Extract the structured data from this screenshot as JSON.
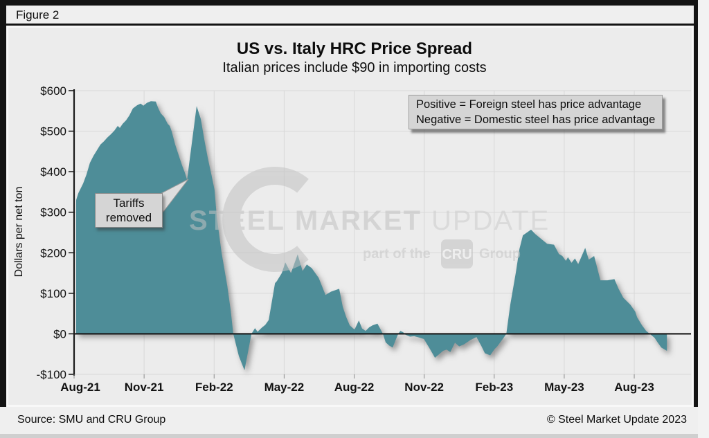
{
  "figure_label": "Figure 2",
  "title": "US vs. Italy HRC Price Spread",
  "subtitle": "Italian prices include $90 in importing costs",
  "legend_note": {
    "line1": "Positive = Foreign steel has price advantage",
    "line2": "Negative = Domestic steel has price advantage"
  },
  "annotation": {
    "line1": "Tariffs",
    "line2": "removed"
  },
  "watermark": {
    "word1": "STEEL",
    "word2": "MARKET",
    "word3": "UPDATE",
    "tagline_pre": "part of the",
    "badge": "CRU",
    "tagline_post": "Group"
  },
  "footer": {
    "source": "Source: SMU and CRU Group",
    "copyright": "© Steel Market Update 2023"
  },
  "colors": {
    "area": "#4e8d98",
    "grid": "#d8d8d8",
    "axis": "#1a1a1a",
    "panel": "#ececec",
    "chrome": "#efefef",
    "box_bg": "#d5d5d5",
    "watermark": "#c2c2c2"
  },
  "chart_data": {
    "type": "area",
    "title": "US vs. Italy HRC Price Spread",
    "subtitle": "Italian prices include $90 in importing costs",
    "xlabel": "",
    "ylabel": "Dollars per net ton",
    "ylim": [
      -100,
      600
    ],
    "grid": true,
    "x_unit": "months since Aug-2021 (fractional = weekly readings)",
    "y_ticks": [
      {
        "v": 600,
        "label": "$600"
      },
      {
        "v": 500,
        "label": "$500"
      },
      {
        "v": 400,
        "label": "$400"
      },
      {
        "v": 300,
        "label": "$300"
      },
      {
        "v": 200,
        "label": "$200"
      },
      {
        "v": 100,
        "label": "$100"
      },
      {
        "v": 0,
        "label": "$0"
      },
      {
        "v": -100,
        "label": "-$100"
      }
    ],
    "x_ticks": [
      {
        "m": 0,
        "label": "Aug-21"
      },
      {
        "m": 3,
        "label": "Nov-21"
      },
      {
        "m": 6,
        "label": "Feb-22"
      },
      {
        "m": 9,
        "label": "May-22"
      },
      {
        "m": 12,
        "label": "Aug-22"
      },
      {
        "m": 15,
        "label": "Nov-22"
      },
      {
        "m": 18,
        "label": "Feb-23"
      },
      {
        "m": 21,
        "label": "May-23"
      },
      {
        "m": 24,
        "label": "Aug-23"
      }
    ],
    "series": [
      {
        "name": "US minus Italy HRC price spread ($/net ton)",
        "points": [
          [
            0.09,
            330
          ],
          [
            0.18,
            347
          ],
          [
            0.39,
            371
          ],
          [
            0.53,
            393
          ],
          [
            0.68,
            422
          ],
          [
            0.83,
            439
          ],
          [
            0.98,
            453
          ],
          [
            1.13,
            467
          ],
          [
            1.28,
            475
          ],
          [
            1.42,
            484
          ],
          [
            1.57,
            492
          ],
          [
            1.72,
            501
          ],
          [
            1.87,
            513
          ],
          [
            1.96,
            508
          ],
          [
            2.08,
            518
          ],
          [
            2.23,
            527
          ],
          [
            2.37,
            539
          ],
          [
            2.52,
            556
          ],
          [
            2.7,
            564
          ],
          [
            2.85,
            568
          ],
          [
            2.97,
            563
          ],
          [
            3.12,
            570
          ],
          [
            3.29,
            574
          ],
          [
            3.5,
            573
          ],
          [
            3.59,
            559
          ],
          [
            3.71,
            544
          ],
          [
            3.86,
            535
          ],
          [
            4.01,
            518
          ],
          [
            4.1,
            513
          ],
          [
            4.18,
            500
          ],
          [
            4.33,
            467
          ],
          [
            4.48,
            441
          ],
          [
            4.63,
            415
          ],
          [
            4.75,
            397
          ],
          [
            4.84,
            380
          ],
          [
            5.25,
            562
          ],
          [
            5.43,
            530
          ],
          [
            5.58,
            479
          ],
          [
            5.73,
            433
          ],
          [
            5.88,
            394
          ],
          [
            6.02,
            355
          ],
          [
            6.11,
            290
          ],
          [
            6.32,
            200
          ],
          [
            6.56,
            120
          ],
          [
            6.71,
            58
          ],
          [
            6.82,
            0
          ],
          [
            7.06,
            -55
          ],
          [
            7.3,
            -90
          ],
          [
            7.6,
            0
          ],
          [
            7.75,
            14
          ],
          [
            7.86,
            5
          ],
          [
            8.04,
            15
          ],
          [
            8.19,
            22
          ],
          [
            8.34,
            34
          ],
          [
            8.61,
            125
          ],
          [
            8.69,
            130
          ],
          [
            8.9,
            150
          ],
          [
            9.05,
            176
          ],
          [
            9.29,
            150
          ],
          [
            9.58,
            196
          ],
          [
            9.79,
            155
          ],
          [
            9.97,
            171
          ],
          [
            10.18,
            162
          ],
          [
            10.48,
            138
          ],
          [
            10.77,
            96
          ],
          [
            11.01,
            104
          ],
          [
            11.36,
            111
          ],
          [
            11.51,
            67
          ],
          [
            11.66,
            41
          ],
          [
            11.81,
            21
          ],
          [
            11.96,
            13
          ],
          [
            12.02,
            11
          ],
          [
            12.2,
            33
          ],
          [
            12.34,
            13
          ],
          [
            12.49,
            7
          ],
          [
            12.64,
            16
          ],
          [
            12.79,
            21
          ],
          [
            13,
            25
          ],
          [
            13.23,
            0
          ],
          [
            13.35,
            -21
          ],
          [
            13.5,
            -29
          ],
          [
            13.65,
            -34
          ],
          [
            13.8,
            -12
          ],
          [
            13.89,
            0
          ],
          [
            13.98,
            7
          ],
          [
            14.1,
            4
          ],
          [
            14.19,
            -2
          ],
          [
            14.39,
            -7
          ],
          [
            14.57,
            -6
          ],
          [
            14.78,
            -9
          ],
          [
            14.99,
            -13
          ],
          [
            15.22,
            -35
          ],
          [
            15.46,
            -59
          ],
          [
            15.81,
            -42
          ],
          [
            15.96,
            -39
          ],
          [
            16.12,
            -45
          ],
          [
            16.32,
            -22
          ],
          [
            16.5,
            -31
          ],
          [
            16.7,
            -26
          ],
          [
            16.99,
            -15
          ],
          [
            17.24,
            -8
          ],
          [
            17.45,
            -30
          ],
          [
            17.6,
            -48
          ],
          [
            17.83,
            -53
          ],
          [
            18.01,
            -38
          ],
          [
            18.13,
            -31
          ],
          [
            18.4,
            -10
          ],
          [
            18.52,
            0
          ],
          [
            18.69,
            72
          ],
          [
            18.93,
            152
          ],
          [
            19.08,
            209
          ],
          [
            19.23,
            243
          ],
          [
            19.58,
            257
          ],
          [
            19.76,
            246
          ],
          [
            20.12,
            229
          ],
          [
            20.27,
            222
          ],
          [
            20.56,
            220
          ],
          [
            20.77,
            197
          ],
          [
            20.92,
            192
          ],
          [
            21.07,
            180
          ],
          [
            21.16,
            189
          ],
          [
            21.31,
            175
          ],
          [
            21.46,
            186
          ],
          [
            21.6,
            172
          ],
          [
            21.9,
            212
          ],
          [
            22.05,
            183
          ],
          [
            22.28,
            192
          ],
          [
            22.55,
            132
          ],
          [
            22.85,
            132
          ],
          [
            23.15,
            135
          ],
          [
            23.32,
            112
          ],
          [
            23.53,
            89
          ],
          [
            23.83,
            72
          ],
          [
            24.04,
            55
          ],
          [
            24.12,
            41
          ],
          [
            24.33,
            21
          ],
          [
            24.51,
            7
          ],
          [
            24.66,
            0
          ],
          [
            24.87,
            -10
          ],
          [
            25.01,
            -22
          ],
          [
            25.16,
            -34
          ],
          [
            25.4,
            -42
          ]
        ]
      }
    ],
    "annotations": [
      {
        "text": "Tariffs removed",
        "points_to_month": 4.84,
        "points_to_value": 380
      },
      {
        "text": "Positive = Foreign steel has price advantage / Negative = Domestic steel has price advantage"
      }
    ]
  }
}
